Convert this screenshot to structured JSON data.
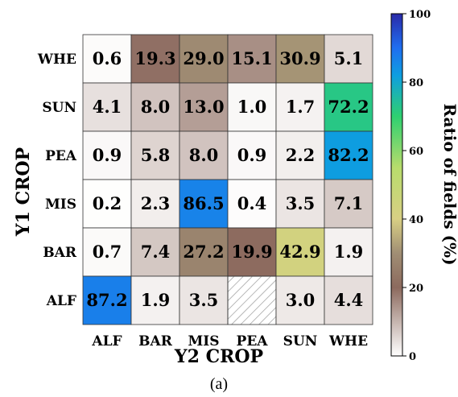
{
  "chart_data": {
    "type": "heatmap",
    "xlabel": "Y2 CROP",
    "ylabel": "Y1 CROP",
    "x_categories": [
      "ALF",
      "BAR",
      "MIS",
      "PEA",
      "SUN",
      "WHE"
    ],
    "y_categories": [
      "WHE",
      "SUN",
      "PEA",
      "MIS",
      "BAR",
      "ALF"
    ],
    "values": [
      [
        0.6,
        19.3,
        29.0,
        15.1,
        30.9,
        5.1
      ],
      [
        4.1,
        8.0,
        13.0,
        1.0,
        1.7,
        72.2
      ],
      [
        0.9,
        5.8,
        8.0,
        0.9,
        2.2,
        82.2
      ],
      [
        0.2,
        2.3,
        86.5,
        0.4,
        3.5,
        7.1
      ],
      [
        0.7,
        7.4,
        27.2,
        19.9,
        42.9,
        1.9
      ],
      [
        87.2,
        1.9,
        3.5,
        null,
        3.0,
        4.4
      ]
    ],
    "missing_cell_style": "hatched",
    "colorbar": {
      "label": "Ratio of fields (%)",
      "range": [
        0,
        100
      ],
      "ticks": [
        0,
        20,
        40,
        60,
        80,
        100
      ],
      "tick_labels": [
        "0",
        "20",
        "40",
        "60",
        "80",
        "100"
      ]
    },
    "colormap_stops": [
      {
        "v": 0,
        "color": "#ffffff"
      },
      {
        "v": 20,
        "color": "#8c6a5e"
      },
      {
        "v": 30,
        "color": "#a08e74"
      },
      {
        "v": 40,
        "color": "#d8cf84"
      },
      {
        "v": 55,
        "color": "#b8dc6c"
      },
      {
        "v": 70,
        "color": "#2ed070"
      },
      {
        "v": 82,
        "color": "#0e9ee0"
      },
      {
        "v": 90,
        "color": "#1f6ef0"
      },
      {
        "v": 100,
        "color": "#2a2aa8"
      }
    ]
  },
  "caption": "(a)"
}
